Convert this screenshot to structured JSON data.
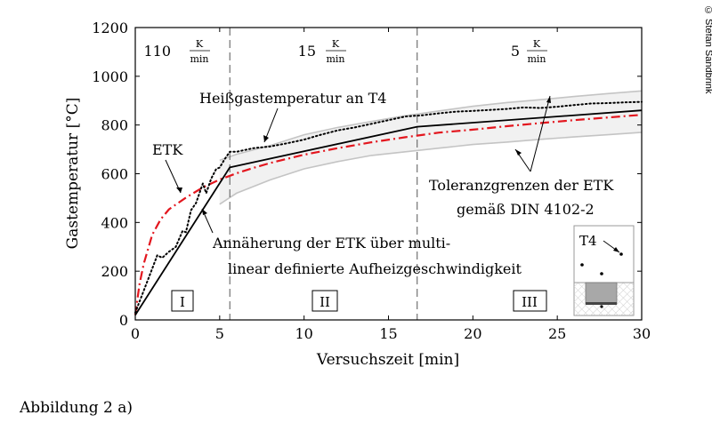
{
  "figure": {
    "caption": "Abbildung 2 a)",
    "copyright": "© Stefan Sandbrink"
  },
  "chart_data": {
    "type": "line",
    "xlabel": "Versuchszeit [min]",
    "ylabel": "Gastemperatur [°C]",
    "xlim": [
      0,
      30
    ],
    "ylim": [
      0,
      1200
    ],
    "xticks": [
      0,
      5,
      10,
      15,
      20,
      25,
      30
    ],
    "yticks": [
      0,
      200,
      400,
      600,
      800,
      1000,
      1200
    ],
    "grid": false,
    "phase_boundaries": [
      5.6,
      16.7
    ],
    "phases": [
      {
        "label": "I",
        "rate_value": "110",
        "rate_num": "K",
        "rate_den": "min"
      },
      {
        "label": "II",
        "rate_value": "15",
        "rate_num": "K",
        "rate_den": "min"
      },
      {
        "label": "III",
        "rate_value": "5",
        "rate_num": "K",
        "rate_den": "min"
      }
    ],
    "annotations": {
      "etk": "ETK",
      "t4": "Heißgastemperatur an T4",
      "tolerance_line1": "Toleranzgrenzen der ETK",
      "tolerance_line2": "gemäß DIN 4102-2",
      "approx_line1": "Annäherung der ETK über multi-",
      "approx_line2": "linear definierte Aufheizgeschwindigkeit",
      "inset_label": "T4"
    },
    "series": [
      {
        "name": "ETK",
        "style": "dashdot",
        "color": "#e3161e",
        "x": [
          0,
          0.25,
          0.5,
          1,
          1.5,
          2,
          3,
          4,
          5,
          6,
          7,
          8,
          10,
          12,
          14,
          16,
          18,
          20,
          22,
          24,
          26,
          28,
          30
        ],
        "y": [
          20,
          146,
          230,
          349,
          412,
          454,
          502,
          544,
          576,
          602,
          624,
          644,
          678,
          705,
          729,
          750,
          769,
          781,
          795,
          808,
          820,
          831,
          842
        ]
      },
      {
        "name": "Heißgastemperatur an T4",
        "style": "dotted",
        "color": "#000000",
        "x": [
          0,
          0.5,
          1,
          1.3,
          1.6,
          2,
          2.4,
          2.8,
          3,
          3.3,
          3.6,
          4,
          4.2,
          4.5,
          4.8,
          5,
          5.3,
          5.6,
          6,
          7,
          8,
          9,
          10,
          11,
          12,
          13,
          14,
          15,
          16,
          17,
          18,
          19,
          20,
          21,
          22,
          23,
          24,
          25,
          26,
          27,
          28,
          29,
          30
        ],
        "y": [
          30,
          120,
          210,
          265,
          255,
          280,
          300,
          365,
          360,
          450,
          480,
          560,
          520,
          580,
          620,
          625,
          660,
          690,
          690,
          705,
          712,
          725,
          740,
          760,
          778,
          790,
          805,
          820,
          835,
          840,
          848,
          855,
          858,
          862,
          866,
          872,
          870,
          875,
          882,
          888,
          890,
          893,
          895
        ]
      },
      {
        "name": "Annäherung der ETK über multilinear definierte Aufheizgeschwindigkeit",
        "style": "solid",
        "color": "#000000",
        "x": [
          0,
          5.6,
          16.7,
          30
        ],
        "y": [
          20,
          626,
          793,
          860
        ]
      }
    ],
    "tolerance_band": {
      "x": [
        5,
        6,
        8,
        10,
        12,
        14,
        16,
        18,
        20,
        22,
        24,
        26,
        28,
        30
      ],
      "upper": [
        655,
        680,
        716,
        760,
        790,
        815,
        838,
        858,
        877,
        892,
        904,
        917,
        929,
        940
      ],
      "lower": [
        475,
        520,
        575,
        620,
        650,
        675,
        690,
        705,
        720,
        730,
        741,
        751,
        760,
        770
      ]
    }
  }
}
